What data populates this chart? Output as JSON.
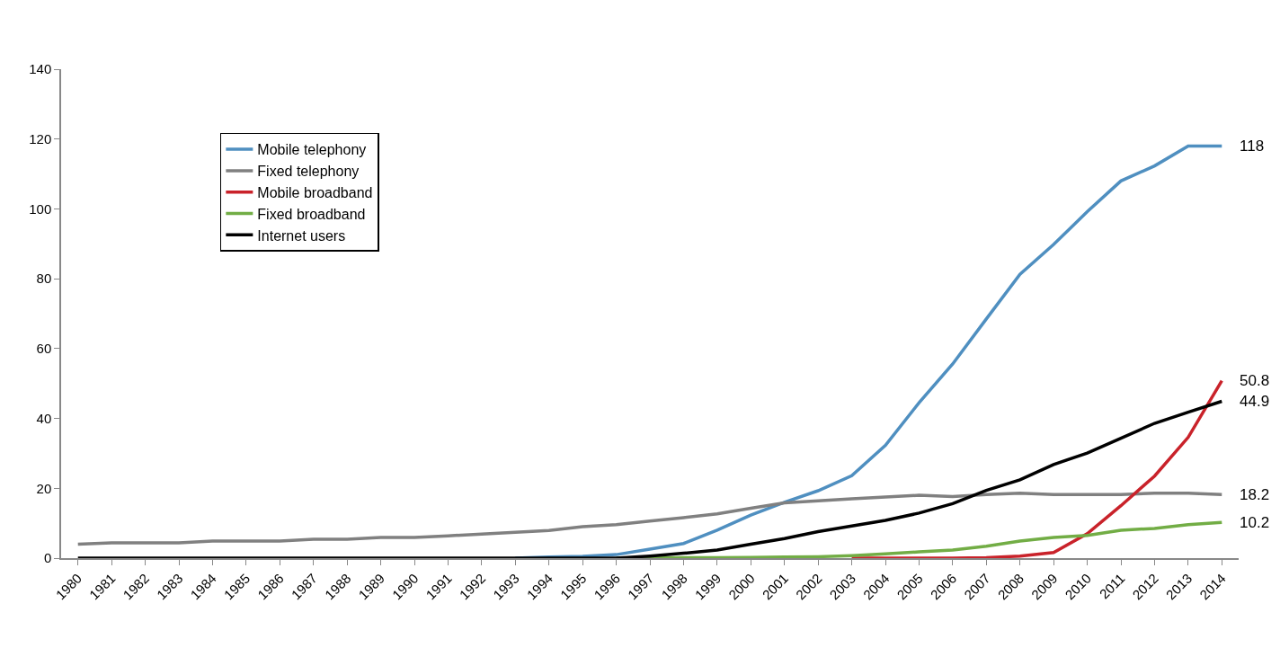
{
  "chart_data": {
    "type": "line",
    "categories": [
      "1980",
      "1981",
      "1982",
      "1983",
      "1984",
      "1985",
      "1986",
      "1987",
      "1988",
      "1989",
      "1990",
      "1991",
      "1992",
      "1993",
      "1994",
      "1995",
      "1996",
      "1997",
      "1998",
      "1999",
      "2000",
      "2001",
      "2002",
      "2003",
      "2004",
      "2005",
      "2006",
      "2007",
      "2008",
      "2009",
      "2010",
      "2011",
      "2012",
      "2013",
      "2014"
    ],
    "ylim": [
      0,
      140
    ],
    "yticks": [
      0,
      20,
      40,
      60,
      80,
      100,
      120,
      140
    ],
    "legend": "top left",
    "marker": "none",
    "line_style": "solid",
    "series": [
      {
        "name": "Mobile telephony",
        "color": "#4f8fc0",
        "values": [
          null,
          null,
          null,
          null,
          null,
          null,
          null,
          null,
          null,
          null,
          null,
          null,
          null,
          0,
          0.3,
          0.5,
          1.0,
          2.6,
          4.2,
          8,
          12.3,
          16,
          19.3,
          23.6,
          32.3,
          44.5,
          55.6,
          68.5,
          81.3,
          89.8,
          99.2,
          108,
          112.3,
          118,
          118
        ]
      },
      {
        "name": "Fixed telephony",
        "color": "#808080",
        "values": [
          4,
          4.4,
          4.4,
          4.4,
          4.9,
          4.9,
          4.9,
          5.4,
          5.4,
          5.9,
          5.9,
          6.4,
          6.9,
          7.4,
          7.9,
          9,
          9.6,
          10.6,
          11.6,
          12.7,
          14.3,
          15.8,
          16.4,
          17,
          17.5,
          18,
          17.6,
          18.2,
          18.6,
          18.2,
          18.2,
          18.2,
          18.6,
          18.6,
          18.2
        ]
      },
      {
        "name": "Mobile broadband",
        "color": "#c9222a",
        "values": [
          null,
          null,
          null,
          null,
          null,
          null,
          null,
          null,
          null,
          null,
          null,
          null,
          null,
          null,
          null,
          null,
          null,
          null,
          null,
          null,
          null,
          null,
          null,
          0,
          0,
          0,
          0,
          0.1,
          0.6,
          1.6,
          7,
          15,
          23.5,
          34.6,
          50.8
        ]
      },
      {
        "name": "Fixed broadband",
        "color": "#72ad45",
        "values": [
          null,
          null,
          null,
          null,
          null,
          null,
          null,
          null,
          null,
          null,
          null,
          null,
          null,
          null,
          null,
          null,
          0,
          0,
          0.1,
          0.1,
          0.2,
          0.3,
          0.4,
          0.7,
          1.2,
          1.8,
          2.3,
          3.4,
          4.9,
          5.9,
          6.5,
          8,
          8.5,
          9.6,
          10.2
        ]
      },
      {
        "name": "Internet users",
        "color": "#000000",
        "values": [
          0,
          0,
          0,
          0,
          0,
          0,
          0,
          0,
          0,
          0,
          0,
          0,
          0,
          0,
          0,
          0,
          0,
          0.6,
          1.4,
          2.3,
          4,
          5.6,
          7.6,
          9.2,
          10.8,
          12.9,
          15.6,
          19.4,
          22.4,
          26.8,
          30.1,
          34.3,
          38.6,
          41.8,
          44.9
        ]
      }
    ],
    "annotations": [
      {
        "text": "118",
        "x": "2014",
        "y": 118
      },
      {
        "text": "50.8",
        "x": "2014",
        "y": 50.8
      },
      {
        "text": "44.9",
        "x": "2014",
        "y": 44.9
      },
      {
        "text": "18.2",
        "x": "2014",
        "y": 18.2
      },
      {
        "text": "10.2",
        "x": "2014",
        "y": 10.2
      }
    ]
  }
}
